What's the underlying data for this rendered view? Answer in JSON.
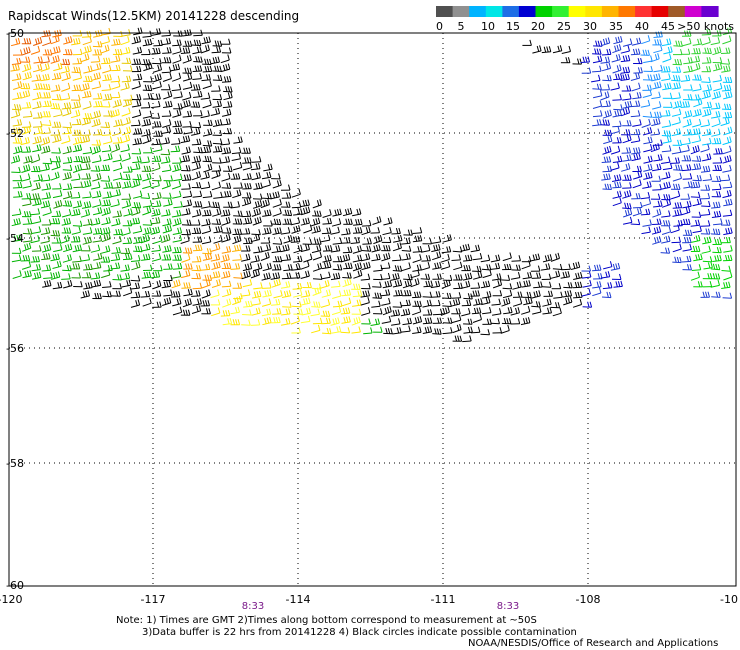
{
  "title": "Rapidscat Winds(12.5KM) 20141228 descending",
  "legend": {
    "colors": [
      "#505050",
      "#909090",
      "#00b4ff",
      "#00e6e6",
      "#1e6ee6",
      "#0000d2",
      "#00d200",
      "#32f032",
      "#ffff00",
      "#ffe600",
      "#ffb400",
      "#ff7800",
      "#ff3232",
      "#e60000",
      "#a05a28",
      "#d000d0",
      "#6a00d0"
    ],
    "labels": [
      "0",
      "5",
      "10",
      "15",
      "20",
      "25",
      "30",
      "35",
      "40",
      "45",
      ">50 knots"
    ]
  },
  "map": {
    "lon_labels": [
      "-120",
      "-117",
      "-114",
      "-111",
      "-108",
      "-10"
    ],
    "lat_labels": [
      "-50",
      "-52",
      "-54",
      "-56",
      "-58",
      "-60"
    ],
    "time_labels": [
      "8:33",
      "8:33"
    ]
  },
  "notes": {
    "line1": "Note: 1) Times are GMT 2)Times along bottom correspond to measurement at ~50S",
    "line2": "3)Data buffer is 22 hrs from 20141228 4) Black circles indicate possible contamination"
  },
  "credit": "NOAA/NESDIS/Office of Research and Applications"
}
